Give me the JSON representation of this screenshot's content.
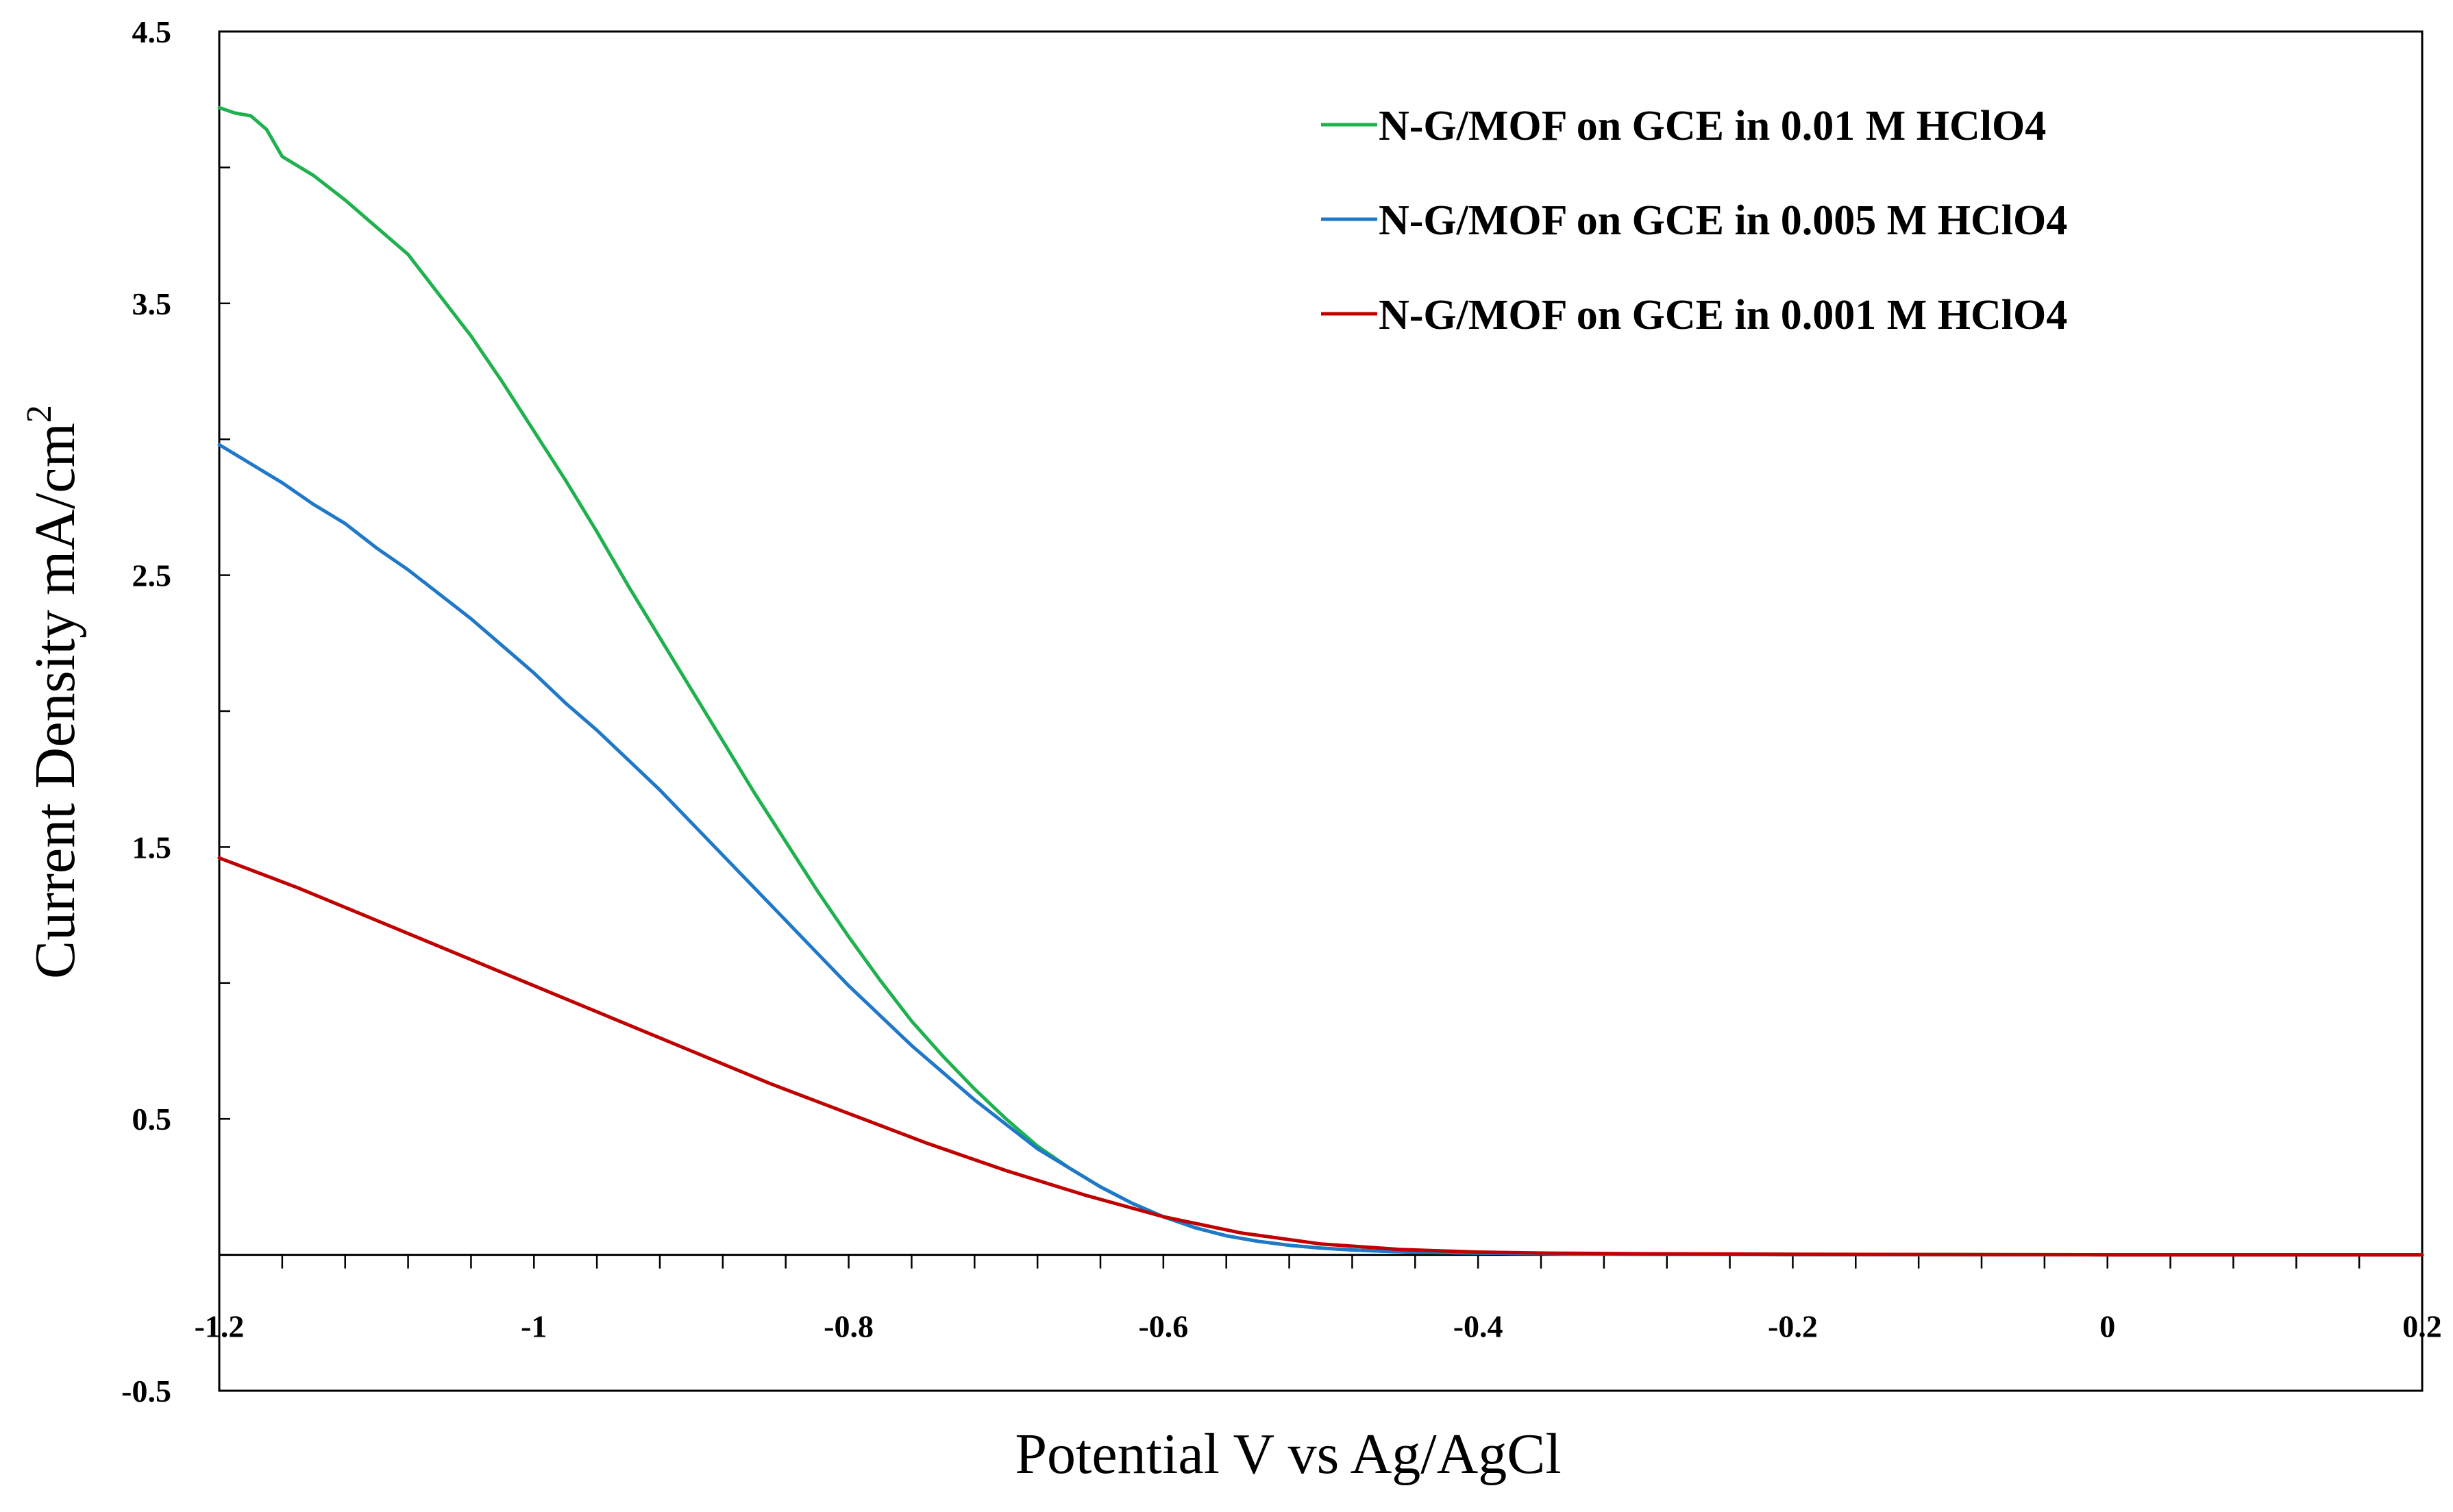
{
  "chart_data": {
    "type": "line",
    "title": "",
    "xlabel": "Potential V vs Ag/AgCl",
    "ylabel": "Current Density mA/cm",
    "ylabel_superscript": "2",
    "xlim": [
      -1.2,
      0.2
    ],
    "ylim": [
      -0.5,
      4.5
    ],
    "x_ticks": [
      {
        "value": -1.2,
        "label": "-1.2"
      },
      {
        "value": -1.0,
        "label": "-1"
      },
      {
        "value": -0.8,
        "label": "-0.8"
      },
      {
        "value": -0.6,
        "label": "-0.6"
      },
      {
        "value": -0.4,
        "label": "-0.4"
      },
      {
        "value": -0.2,
        "label": "-0.2"
      },
      {
        "value": 0.0,
        "label": "0"
      },
      {
        "value": 0.2,
        "label": "0.2"
      }
    ],
    "y_ticks": [
      {
        "value": 4.5,
        "label": "4.5"
      },
      {
        "value": 3.5,
        "label": "3.5"
      },
      {
        "value": 2.5,
        "label": "2.5"
      },
      {
        "value": 1.5,
        "label": "1.5"
      },
      {
        "value": 0.5,
        "label": "0.5"
      },
      {
        "value": -0.5,
        "label": "-0.5"
      }
    ],
    "x_minor_step": 0.04,
    "y_minor_step": 0.5,
    "x_axis_at_y": 0,
    "grid": false,
    "legend_position": "top-right",
    "series": [
      {
        "name": "N-G/MOF on GCE in 0.01 M HClO4",
        "color": "#1fb14e",
        "x": [
          -1.2,
          -1.19,
          -1.18,
          -1.17,
          -1.16,
          -1.14,
          -1.12,
          -1.1,
          -1.08,
          -1.06,
          -1.04,
          -1.02,
          -1.0,
          -0.98,
          -0.96,
          -0.94,
          -0.92,
          -0.9,
          -0.88,
          -0.86,
          -0.84,
          -0.82,
          -0.8,
          -0.78,
          -0.76,
          -0.74,
          -0.72,
          -0.7,
          -0.68,
          -0.66,
          -0.64,
          -0.62,
          -0.6,
          -0.58,
          -0.56,
          -0.54,
          -0.52,
          -0.5,
          -0.48,
          -0.46,
          -0.44,
          -0.42,
          -0.4,
          -0.38,
          -0.36,
          -0.34,
          -0.32,
          -0.3,
          -0.25,
          -0.2,
          -0.1,
          0.0,
          0.1,
          0.2
        ],
        "values": [
          4.22,
          4.2,
          4.19,
          4.14,
          4.04,
          3.97,
          3.88,
          3.78,
          3.68,
          3.53,
          3.38,
          3.21,
          3.03,
          2.85,
          2.66,
          2.46,
          2.27,
          2.08,
          1.89,
          1.7,
          1.52,
          1.34,
          1.17,
          1.01,
          0.86,
          0.73,
          0.61,
          0.5,
          0.4,
          0.32,
          0.25,
          0.19,
          0.14,
          0.1,
          0.07,
          0.05,
          0.035,
          0.025,
          0.018,
          0.013,
          0.01,
          0.008,
          0.006,
          0.005,
          0.004,
          0.003,
          0.003,
          0.002,
          0.002,
          0.001,
          0.001,
          0.0,
          0.0,
          0.0
        ]
      },
      {
        "name": "N-G/MOF on GCE in 0.005 M HClO4",
        "color": "#1f78c8",
        "x": [
          -1.2,
          -1.18,
          -1.16,
          -1.14,
          -1.12,
          -1.1,
          -1.08,
          -1.06,
          -1.04,
          -1.02,
          -1.0,
          -0.98,
          -0.96,
          -0.94,
          -0.92,
          -0.9,
          -0.88,
          -0.86,
          -0.84,
          -0.82,
          -0.8,
          -0.78,
          -0.76,
          -0.74,
          -0.72,
          -0.7,
          -0.68,
          -0.66,
          -0.64,
          -0.62,
          -0.6,
          -0.58,
          -0.56,
          -0.54,
          -0.52,
          -0.5,
          -0.48,
          -0.46,
          -0.44,
          -0.42,
          -0.4,
          -0.38,
          -0.36,
          -0.34,
          -0.32,
          -0.3,
          -0.25,
          -0.2,
          -0.1,
          0.0,
          0.1,
          0.2
        ],
        "values": [
          2.98,
          2.91,
          2.84,
          2.76,
          2.69,
          2.6,
          2.52,
          2.43,
          2.34,
          2.24,
          2.14,
          2.03,
          1.93,
          1.82,
          1.71,
          1.59,
          1.47,
          1.35,
          1.23,
          1.11,
          0.99,
          0.88,
          0.77,
          0.67,
          0.57,
          0.48,
          0.39,
          0.32,
          0.25,
          0.19,
          0.14,
          0.1,
          0.07,
          0.05,
          0.035,
          0.025,
          0.018,
          0.013,
          0.01,
          0.008,
          0.006,
          0.005,
          0.004,
          0.003,
          0.003,
          0.002,
          0.002,
          0.001,
          0.001,
          0.0,
          0.0,
          0.0
        ]
      },
      {
        "name": "N-G/MOF on GCE in 0.001 M HClO4",
        "color": "#c00000",
        "x": [
          -1.2,
          -1.15,
          -1.1,
          -1.05,
          -1.0,
          -0.95,
          -0.9,
          -0.85,
          -0.8,
          -0.75,
          -0.7,
          -0.65,
          -0.6,
          -0.55,
          -0.5,
          -0.45,
          -0.4,
          -0.35,
          -0.3,
          -0.25,
          -0.2,
          -0.1,
          0.0,
          0.1,
          0.2
        ],
        "values": [
          1.46,
          1.35,
          1.23,
          1.11,
          0.99,
          0.87,
          0.75,
          0.63,
          0.52,
          0.41,
          0.31,
          0.22,
          0.14,
          0.08,
          0.04,
          0.02,
          0.01,
          0.006,
          0.004,
          0.003,
          0.002,
          0.001,
          0.0,
          0.0,
          0.0
        ]
      }
    ]
  }
}
